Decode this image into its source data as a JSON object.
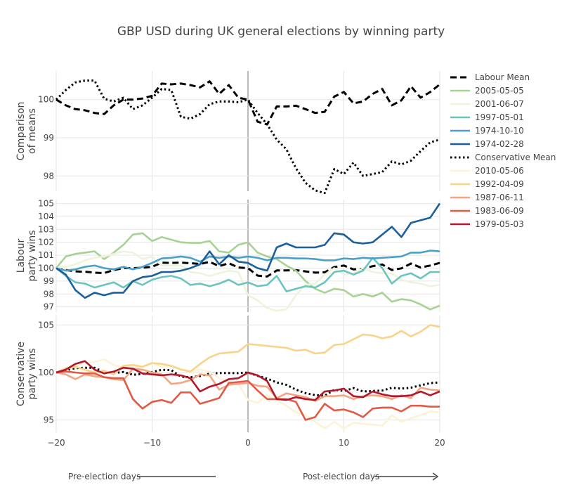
{
  "chart_data": {
    "type": "line",
    "title": "GBP USD during UK general elections by winning party",
    "x_range": [
      -20,
      20
    ],
    "x_ticks": [
      "−20",
      "−10",
      "0",
      "10",
      "20"
    ],
    "annotations": {
      "pre": "Pre-election days",
      "post": "Post-election days"
    },
    "x": [
      -20,
      -19,
      -18,
      -17,
      -16,
      -15,
      -14,
      -13,
      -12,
      -11,
      -10,
      -9,
      -8,
      -7,
      -6,
      -5,
      -4,
      -3,
      -2,
      -1,
      0,
      1,
      2,
      3,
      4,
      5,
      6,
      7,
      8,
      9,
      10,
      11,
      12,
      13,
      14,
      15,
      16,
      17,
      18,
      19,
      20
    ],
    "panels": [
      {
        "id": "means",
        "ylabel": [
          "Comparison",
          "of means"
        ],
        "ylim": [
          97.6,
          100.75
        ],
        "ticks": [
          98,
          99,
          100
        ],
        "series": [
          {
            "name": "Labour Mean",
            "color": "#000000",
            "dash": "dash",
            "values": [
              100.0,
              99.85,
              99.75,
              99.72,
              99.65,
              99.62,
              99.85,
              100.0,
              100.0,
              100.03,
              100.1,
              100.42,
              100.4,
              100.42,
              100.38,
              100.32,
              100.48,
              100.15,
              100.38,
              100.05,
              100.0,
              99.42,
              99.35,
              99.82,
              99.82,
              99.84,
              99.75,
              99.65,
              99.68,
              100.08,
              100.2,
              99.9,
              99.95,
              100.15,
              100.28,
              99.85,
              99.98,
              100.35,
              100.05,
              100.2,
              100.4
            ]
          },
          {
            "name": "Conservative Mean",
            "color": "#000000",
            "dash": "dot",
            "values": [
              100.0,
              100.25,
              100.45,
              100.5,
              100.5,
              100.02,
              99.95,
              100.05,
              99.75,
              99.85,
              100.05,
              100.28,
              100.25,
              99.55,
              99.5,
              99.62,
              99.88,
              99.95,
              99.95,
              99.93,
              100.0,
              99.65,
              99.35,
              98.95,
              98.7,
              98.2,
              97.82,
              97.62,
              97.55,
              98.18,
              98.05,
              98.35,
              98.0,
              98.05,
              98.1,
              98.38,
              98.3,
              98.4,
              98.65,
              98.88,
              98.95
            ]
          }
        ]
      },
      {
        "id": "labour",
        "ylabel": [
          "Labour",
          "party wins"
        ],
        "ylim": [
          96.6,
          105.3
        ],
        "ticks": [
          97,
          98,
          99,
          100,
          101,
          102,
          103,
          104,
          105
        ],
        "series": [
          {
            "name": "Labour Mean",
            "color": "#000000",
            "dash": "dash",
            "values": [
              100.0,
              99.85,
              99.75,
              99.72,
              99.65,
              99.62,
              99.85,
              100.0,
              100.0,
              100.03,
              100.1,
              100.42,
              100.4,
              100.42,
              100.38,
              100.32,
              100.48,
              100.15,
              100.38,
              100.05,
              100.0,
              99.42,
              99.35,
              99.82,
              99.82,
              99.84,
              99.75,
              99.65,
              99.68,
              100.08,
              100.2,
              99.9,
              99.95,
              100.15,
              100.28,
              99.85,
              99.98,
              100.35,
              100.05,
              100.2,
              100.4
            ]
          },
          {
            "name": "2005-05-05",
            "color": "#a6d294",
            "dash": "solid",
            "values": [
              100.0,
              100.9,
              101.1,
              101.2,
              101.3,
              100.7,
              101.2,
              101.8,
              102.6,
              102.7,
              102.1,
              102.4,
              102.2,
              102.0,
              101.95,
              101.95,
              102.1,
              101.3,
              101.2,
              101.8,
              102.0,
              101.2,
              100.9,
              100.7,
              100.2,
              99.8,
              99.0,
              98.4,
              98.1,
              98.4,
              98.3,
              97.8,
              98.0,
              97.8,
              98.1,
              97.4,
              97.6,
              97.5,
              97.2,
              96.8,
              97.1
            ]
          },
          {
            "name": "2001-06-07",
            "color": "#ecf5dc",
            "dash": "solid",
            "values": [
              100.0,
              100.1,
              100.3,
              100.6,
              100.8,
              100.9,
              101.1,
              101.3,
              101.2,
              100.7,
              100.9,
              100.2,
              100.2,
              100.2,
              99.7,
              99.6,
              99.4,
              99.6,
              99.8,
              99.7,
              97.9,
              97.5,
              96.9,
              96.7,
              96.8,
              97.9,
              98.7,
              98.8,
              99.5,
              100.0,
              99.5,
              99.6,
              100.0,
              99.7,
              99.6,
              99.6,
              99.1,
              98.9,
              98.8,
              98.6,
              98.7
            ]
          },
          {
            "name": "1997-05-01",
            "color": "#6cc4be",
            "dash": "solid",
            "values": [
              100.0,
              99.4,
              98.9,
              98.8,
              98.5,
              98.7,
              98.9,
              98.5,
              99.0,
              98.7,
              99.1,
              99.3,
              99.4,
              99.2,
              98.7,
              98.8,
              98.6,
              98.8,
              99.1,
              98.7,
              98.9,
              98.6,
              98.7,
              99.4,
              98.2,
              98.4,
              98.6,
              98.5,
              98.9,
              99.7,
              99.8,
              99.5,
              99.8,
              100.8,
              100.0,
              98.8,
              99.4,
              99.6,
              99.2,
              99.7,
              99.7
            ]
          },
          {
            "name": "1974-10-10",
            "color": "#4aa0c9",
            "dash": "solid",
            "values": [
              100.0,
              99.8,
              99.9,
              100.1,
              100.2,
              100.0,
              99.9,
              100.1,
              99.9,
              100.1,
              100.4,
              100.75,
              100.8,
              100.9,
              100.8,
              100.5,
              100.9,
              100.8,
              100.9,
              100.8,
              100.9,
              100.8,
              100.6,
              100.8,
              100.8,
              100.75,
              100.75,
              100.7,
              100.6,
              100.6,
              100.75,
              100.7,
              100.8,
              100.75,
              100.8,
              100.85,
              100.9,
              101.2,
              101.2,
              101.35,
              101.3
            ]
          },
          {
            "name": "1974-02-28",
            "color": "#1c5f9b",
            "dash": "solid",
            "values": [
              100.0,
              99.5,
              98.3,
              97.7,
              98.1,
              97.9,
              98.1,
              98.1,
              99.0,
              99.3,
              99.4,
              99.7,
              99.7,
              99.8,
              100.0,
              100.3,
              101.3,
              100.3,
              101.0,
              100.5,
              100.4,
              100.0,
              99.8,
              101.6,
              101.9,
              101.6,
              101.6,
              101.6,
              101.8,
              102.7,
              102.6,
              102.0,
              101.9,
              102.0,
              102.6,
              103.2,
              102.4,
              103.5,
              103.7,
              103.9,
              105.0
            ]
          }
        ]
      },
      {
        "id": "conservative",
        "ylabel": [
          "Conservative",
          "party wins"
        ],
        "ylim": [
          93.7,
          106.0
        ],
        "ticks": [
          95,
          100,
          105
        ],
        "series": [
          {
            "name": "Conservative Mean",
            "color": "#000000",
            "dash": "dot",
            "values": [
              100.0,
              100.25,
              100.45,
              100.5,
              100.5,
              100.02,
              99.95,
              100.05,
              99.75,
              99.85,
              100.05,
              100.28,
              100.25,
              99.55,
              99.5,
              99.62,
              99.88,
              99.95,
              99.95,
              99.93,
              100.0,
              99.65,
              99.35,
              98.95,
              98.7,
              98.2,
              97.82,
              97.62,
              97.55,
              98.18,
              98.05,
              98.35,
              98.0,
              98.05,
              98.1,
              98.38,
              98.3,
              98.4,
              98.65,
              98.88,
              98.95
            ]
          },
          {
            "name": "2010-05-06",
            "color": "#fcf3d6",
            "dash": "solid",
            "values": [
              100.0,
              100.5,
              100.7,
              101.0,
              101.1,
              101.4,
              100.8,
              100.5,
              100.4,
              100.6,
              101.0,
              100.6,
              100.7,
              100.4,
              100.1,
              100.3,
              100.1,
              99.4,
              99.0,
              98.8,
              97.1,
              96.8,
              97.6,
              97.1,
              96.5,
              95.8,
              95.5,
              94.8,
              94.1,
              94.8,
              94.1,
              94.7,
              94.6,
              94.5,
              94.4,
              95.5,
              94.8,
              95.2,
              95.5,
              95.9,
              95.8
            ]
          },
          {
            "name": "1992-04-09",
            "color": "#f9d38a",
            "dash": "solid",
            "values": [
              100.0,
              100.4,
              100.6,
              100.3,
              100.0,
              100.2,
              99.8,
              100.7,
              100.8,
              100.6,
              101.0,
              100.9,
              100.7,
              100.3,
              100.1,
              100.9,
              101.6,
              102.0,
              102.1,
              102.2,
              103.0,
              102.9,
              102.8,
              102.7,
              102.6,
              102.3,
              102.4,
              102.0,
              102.1,
              102.9,
              103.0,
              103.5,
              104.0,
              103.9,
              103.6,
              103.8,
              104.4,
              103.8,
              104.3,
              105.0,
              104.8
            ]
          },
          {
            "name": "1987-06-11",
            "color": "#f4a582",
            "dash": "solid",
            "values": [
              100.0,
              99.8,
              99.3,
              99.8,
              99.6,
              99.5,
              99.3,
              99.2,
              100.4,
              100.3,
              100.0,
              99.8,
              98.8,
              98.9,
              99.2,
              99.8,
              99.7,
              98.2,
              98.7,
              98.8,
              98.9,
              98.6,
              98.5,
              97.3,
              97.8,
              97.6,
              97.4,
              97.0,
              97.5,
              97.5,
              97.6,
              97.2,
              97.5,
              97.6,
              97.5,
              97.2,
              97.6,
              97.3,
              98.4,
              98.2,
              98.1
            ]
          },
          {
            "name": "1983-06-09",
            "color": "#e05a45",
            "dash": "solid",
            "values": [
              100.0,
              100.1,
              100.0,
              99.9,
              99.9,
              99.5,
              99.4,
              99.4,
              97.2,
              96.2,
              96.9,
              97.1,
              96.8,
              97.9,
              97.9,
              96.7,
              97.0,
              97.3,
              98.9,
              99.0,
              99.1,
              98.1,
              97.2,
              97.2,
              97.2,
              96.9,
              95.0,
              95.3,
              96.7,
              96.0,
              96.1,
              95.8,
              95.3,
              96.2,
              96.3,
              96.3,
              95.9,
              96.5,
              96.5,
              96.4,
              96.4
            ]
          },
          {
            "name": "1979-05-03",
            "color": "#b2182b",
            "dash": "solid",
            "values": [
              100.0,
              100.3,
              100.9,
              101.2,
              100.3,
              99.9,
              100.1,
              100.5,
              100.4,
              99.9,
              99.8,
              99.7,
              99.8,
              99.7,
              99.4,
              98.0,
              98.5,
              98.8,
              99.3,
              99.4,
              100.0,
              99.7,
              99.1,
              97.2,
              97.1,
              97.4,
              97.2,
              97.1,
              98.0,
              98.1,
              98.3,
              97.5,
              97.4,
              98.0,
              97.7,
              97.5,
              97.5,
              97.6,
              98.0,
              97.6,
              98.0
            ]
          }
        ]
      }
    ],
    "legend": [
      {
        "name": "Labour Mean",
        "color": "#000000",
        "dash": "dash"
      },
      {
        "name": "2005-05-05",
        "color": "#a6d294",
        "dash": "solid"
      },
      {
        "name": "2001-06-07",
        "color": "#ecf5dc",
        "dash": "solid"
      },
      {
        "name": "1997-05-01",
        "color": "#6cc4be",
        "dash": "solid"
      },
      {
        "name": "1974-10-10",
        "color": "#4aa0c9",
        "dash": "solid"
      },
      {
        "name": "1974-02-28",
        "color": "#1c5f9b",
        "dash": "solid"
      },
      {
        "name": "Conservative Mean",
        "color": "#000000",
        "dash": "dot"
      },
      {
        "name": "2010-05-06",
        "color": "#fcf3d6",
        "dash": "solid"
      },
      {
        "name": "1992-04-09",
        "color": "#f9d38a",
        "dash": "solid"
      },
      {
        "name": "1987-06-11",
        "color": "#f4a582",
        "dash": "solid"
      },
      {
        "name": "1983-06-09",
        "color": "#e05a45",
        "dash": "solid"
      },
      {
        "name": "1979-05-03",
        "color": "#b2182b",
        "dash": "solid"
      }
    ],
    "legend_position": "right"
  }
}
